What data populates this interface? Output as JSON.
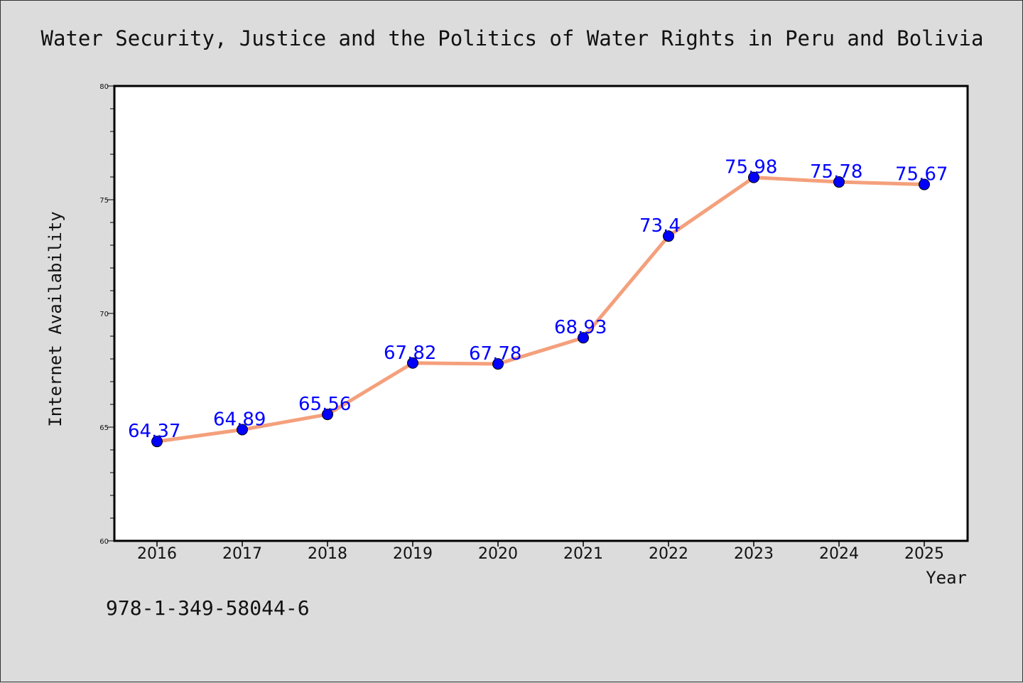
{
  "chart_data": {
    "type": "line",
    "title": "Water Security, Justice and the Politics of Water Rights in Peru and Bolivia",
    "xlabel": "Year",
    "ylabel": "Internet Availability",
    "categories": [
      "2016",
      "2017",
      "2018",
      "2019",
      "2020",
      "2021",
      "2022",
      "2023",
      "2024",
      "2025"
    ],
    "values": [
      64.37,
      64.89,
      65.56,
      67.82,
      67.78,
      68.93,
      73.4,
      75.98,
      75.78,
      75.67
    ],
    "data_labels": [
      "64.37",
      "64.89",
      "65.56",
      "67.82",
      "67.78",
      "68.93",
      "73.4",
      "75.98",
      "75.78",
      "75.67"
    ],
    "ylim": [
      60,
      80
    ],
    "yticks": [
      60,
      65,
      70,
      75,
      80
    ],
    "grid": false,
    "line_color": "#f4a07c",
    "marker_color": "#0000ff",
    "label_color": "#0000ff"
  },
  "footer_text": "978-1-349-58044-6"
}
